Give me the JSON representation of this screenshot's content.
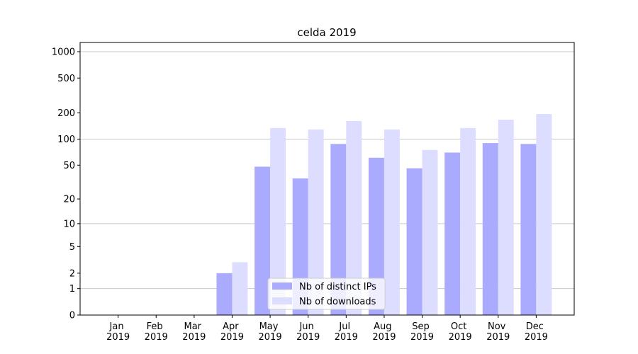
{
  "chart_data": {
    "type": "bar",
    "title": "celda 2019",
    "categories": [
      "Jan 2019",
      "Feb 2019",
      "Mar 2019",
      "Apr 2019",
      "May 2019",
      "Jun 2019",
      "Jul 2019",
      "Aug 2019",
      "Sep 2019",
      "Oct 2019",
      "Nov 2019",
      "Dec 2019"
    ],
    "series": [
      {
        "name": "Nb of distinct IPs",
        "color": "#aaaaff",
        "values": [
          0,
          0,
          0,
          2,
          48,
          35,
          88,
          61,
          46,
          70,
          90,
          88
        ]
      },
      {
        "name": "Nb of downloads",
        "color": "#ddddff",
        "values": [
          0,
          0,
          0,
          3,
          134,
          129,
          161,
          129,
          75,
          134,
          167,
          194
        ]
      }
    ],
    "y_scale": "log1p",
    "ylim": [
      0,
      1273
    ],
    "yticks": [
      0,
      1,
      2,
      5,
      10,
      20,
      50,
      100,
      200,
      500,
      1000
    ],
    "grid": true,
    "legend": "lower center"
  }
}
